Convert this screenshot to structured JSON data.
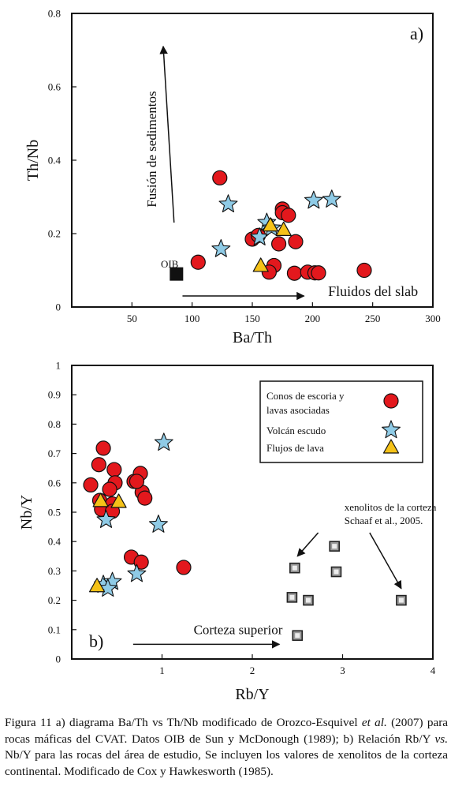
{
  "chart_data": [
    {
      "type": "scatter",
      "panel_label": "a)",
      "xlabel": "Ba/Th",
      "ylabel": "Th/Nb",
      "xlim": [
        0,
        300
      ],
      "ylim": [
        0,
        0.8
      ],
      "xticks": [
        50,
        100,
        150,
        200,
        250,
        300
      ],
      "yticks": [
        0,
        0.2,
        0.4,
        0.6,
        0.8
      ],
      "ytick_labels": [
        "0",
        "0.2",
        "0.4",
        "0.6",
        "0.8"
      ],
      "grid": false,
      "series": [
        {
          "key": "conos",
          "marker": "circle",
          "color": "#e3181d",
          "x": [
            123,
            105,
            150,
            155,
            175,
            175,
            180,
            186,
            172,
            168,
            164,
            185,
            196,
            202,
            205,
            243
          ],
          "y": [
            0.352,
            0.122,
            0.185,
            0.195,
            0.267,
            0.257,
            0.25,
            0.178,
            0.172,
            0.113,
            0.095,
            0.092,
            0.095,
            0.093,
            0.093,
            0.1
          ]
        },
        {
          "key": "escudo",
          "marker": "star",
          "color": "#8fcbe6",
          "x": [
            130,
            124,
            156,
            162,
            166,
            201,
            216
          ],
          "y": [
            0.28,
            0.158,
            0.19,
            0.23,
            0.215,
            0.29,
            0.293
          ]
        },
        {
          "key": "flujos",
          "marker": "triangle",
          "color": "#f5c218",
          "x": [
            157,
            165,
            176
          ],
          "y": [
            0.112,
            0.222,
            0.21
          ]
        },
        {
          "key": "oib",
          "marker": "square",
          "color": "#111111",
          "x": [
            87
          ],
          "y": [
            0.09
          ]
        }
      ],
      "annotations": [
        {
          "text": "OIB",
          "x": 74,
          "y": 0.108
        },
        {
          "text": "Fusión de sedimentos",
          "x": 70,
          "y": 0.43,
          "rotation": -90
        },
        {
          "text": "Fluidos del slab",
          "x": 213,
          "y": 0.03
        }
      ],
      "arrows": [
        {
          "from": [
            85,
            0.23
          ],
          "to": [
            76,
            0.71
          ]
        },
        {
          "from": [
            92,
            0.03
          ],
          "to": [
            193,
            0.03
          ]
        }
      ]
    },
    {
      "type": "scatter",
      "panel_label": "b)",
      "xlabel": "Rb/Y",
      "ylabel": "Nb/Y",
      "xlim": [
        0,
        4
      ],
      "ylim": [
        0,
        1
      ],
      "xticks": [
        1,
        2,
        3,
        4
      ],
      "yticks": [
        0,
        0.1,
        0.2,
        0.3,
        0.4,
        0.5,
        0.6,
        0.7,
        0.8,
        0.9,
        1
      ],
      "ytick_labels": [
        "0",
        "0.1",
        "0.2",
        "0.3",
        "0.4",
        "0.5",
        "0.6",
        "0.7",
        "0.8",
        "0.9",
        "1"
      ],
      "grid": false,
      "legend": {
        "placement": "top-right",
        "entries": [
          {
            "key": "conos",
            "label_lines": [
              "Conos de escoria y",
              "lavas asociadas"
            ]
          },
          {
            "key": "escudo",
            "label_lines": [
              "Volcán escudo"
            ]
          },
          {
            "key": "flujos",
            "label_lines": [
              "Flujos de lava"
            ]
          }
        ]
      },
      "series": [
        {
          "key": "conos",
          "marker": "circle",
          "color": "#e3181d",
          "x": [
            0.21,
            0.3,
            0.35,
            0.47,
            0.48,
            0.31,
            0.33,
            0.42,
            0.45,
            0.45,
            0.69,
            0.76,
            0.78,
            0.72,
            0.81,
            0.66,
            0.77,
            1.24
          ],
          "y": [
            0.593,
            0.662,
            0.718,
            0.645,
            0.6,
            0.54,
            0.51,
            0.578,
            0.528,
            0.503,
            0.605,
            0.632,
            0.568,
            0.605,
            0.548,
            0.347,
            0.33,
            0.312
          ]
        },
        {
          "key": "escudo",
          "marker": "star",
          "color": "#8fcbe6",
          "x": [
            1.02,
            0.96,
            0.38,
            0.35,
            0.45,
            0.4,
            0.72
          ],
          "y": [
            0.737,
            0.458,
            0.474,
            0.253,
            0.263,
            0.24,
            0.29
          ]
        },
        {
          "key": "flujos",
          "marker": "triangle",
          "color": "#f5c218",
          "x": [
            0.32,
            0.28,
            0.52
          ],
          "y": [
            0.538,
            0.248,
            0.535
          ]
        },
        {
          "key": "xenolitos",
          "marker": "open-square",
          "color": "#333333",
          "x": [
            2.47,
            2.44,
            2.91,
            2.93,
            2.62,
            2.5,
            3.65
          ],
          "y": [
            0.31,
            0.21,
            0.384,
            0.297,
            0.2,
            0.08,
            0.2
          ]
        }
      ],
      "annotations": [
        {
          "text": "xenolitos de la corteza",
          "x": 3.02,
          "y": 0.505
        },
        {
          "text": "Schaaf et al., 2005.",
          "x": 3.02,
          "y": 0.46
        },
        {
          "text": "Corteza superior",
          "x": 1.35,
          "y": 0.085
        }
      ],
      "arrows": [
        {
          "from": [
            2.73,
            0.43
          ],
          "to": [
            2.5,
            0.35
          ]
        },
        {
          "from": [
            3.3,
            0.43
          ],
          "to": [
            3.65,
            0.24
          ]
        },
        {
          "from": [
            0.68,
            0.05
          ],
          "to": [
            2.3,
            0.05
          ]
        }
      ]
    }
  ],
  "caption": {
    "part1": "Figura 11 a) diagrama Ba/Th vs Th/Nb modificado de Orozco-Esquivel ",
    "et_al": "et al.",
    "part2": " (2007) para rocas máficas del CVAT. Datos OIB de Sun y McDonough (1989); b) Relación Rb/Y ",
    "vs": "vs.",
    "part3": " Nb/Y para las rocas del área de estudio, Se incluyen los valores de xenolitos de la corteza continental. Modificado de Cox y Hawkesworth (1985)."
  }
}
